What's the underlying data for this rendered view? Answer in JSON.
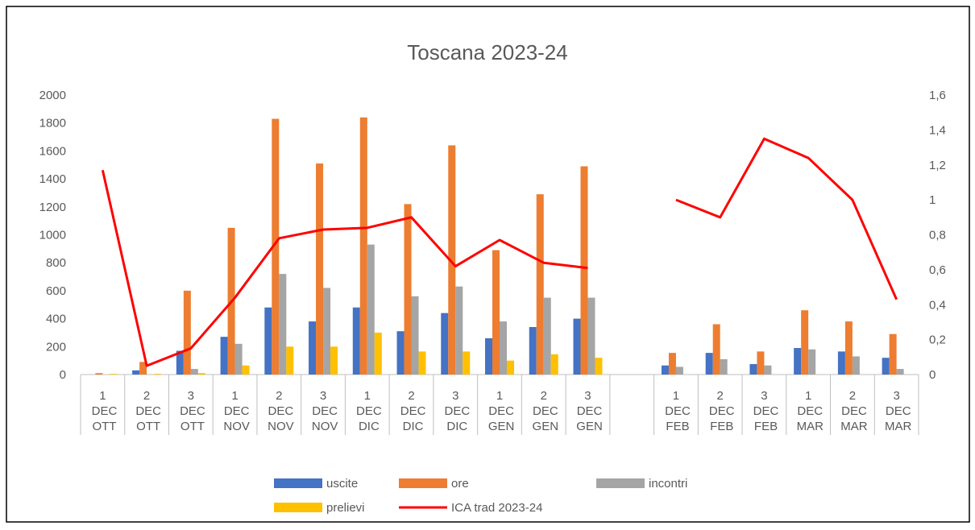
{
  "chart_data": {
    "type": "bar",
    "title": "Toscana 2023-24",
    "categories": [
      "1 DEC OTT",
      "2 DEC OTT",
      "3 DEC OTT",
      "1 DEC NOV",
      "2 DEC NOV",
      "3 DEC NOV",
      "1 DEC DIC",
      "2 DEC DIC",
      "3 DEC DIC",
      "1 DEC GEN",
      "2 DEC GEN",
      "3 DEC GEN",
      null,
      "1 DEC FEB",
      "2 DEC FEB",
      "3 DEC FEB",
      "1 DEC MAR",
      "2 DEC MAR",
      "3 DEC MAR"
    ],
    "series": [
      {
        "name": "uscite",
        "color": "#4472c4",
        "type": "bar",
        "values": [
          0,
          30,
          170,
          270,
          480,
          380,
          480,
          310,
          440,
          260,
          340,
          400,
          null,
          65,
          155,
          75,
          190,
          165,
          120
        ]
      },
      {
        "name": "ore",
        "color": "#ed7d31",
        "type": "bar",
        "values": [
          10,
          90,
          600,
          1050,
          1830,
          1510,
          1840,
          1220,
          1640,
          890,
          1290,
          1490,
          null,
          155,
          360,
          165,
          460,
          380,
          290
        ]
      },
      {
        "name": "incontri",
        "color": "#a5a5a5",
        "type": "bar",
        "values": [
          0,
          0,
          40,
          220,
          720,
          620,
          930,
          560,
          630,
          380,
          550,
          550,
          null,
          55,
          110,
          65,
          180,
          130,
          40
        ]
      },
      {
        "name": "prelievi",
        "color": "#ffc000",
        "type": "bar",
        "values": [
          5,
          5,
          10,
          65,
          200,
          200,
          300,
          165,
          165,
          100,
          145,
          120,
          null,
          0,
          0,
          0,
          0,
          0,
          0
        ]
      },
      {
        "name": "ICA trad 2023-24",
        "color": "#ff0000",
        "type": "line",
        "axis": "y2",
        "values": [
          1.17,
          0.05,
          0.15,
          0.44,
          0.78,
          0.83,
          0.84,
          0.9,
          0.62,
          0.77,
          0.64,
          0.61,
          null,
          1.0,
          0.9,
          1.35,
          1.24,
          1.0,
          0.43
        ]
      }
    ],
    "ylim": [
      0,
      2000
    ],
    "yticks": [
      0,
      200,
      400,
      600,
      800,
      1000,
      1200,
      1400,
      1600,
      1800,
      2000
    ],
    "y2lim": [
      0,
      1.6
    ],
    "y2ticks": [
      0,
      {
        "value": 0.2,
        "label": "0,2"
      },
      {
        "value": 0.4,
        "label": "0,4"
      },
      {
        "value": 0.6,
        "label": "0,6"
      },
      {
        "value": 0.8,
        "label": "0,8"
      },
      1,
      {
        "value": 1.2,
        "label": "1,2"
      },
      {
        "value": 1.4,
        "label": "1,4"
      },
      {
        "value": 1.6,
        "label": "1,6"
      }
    ],
    "legend": "bottom"
  }
}
